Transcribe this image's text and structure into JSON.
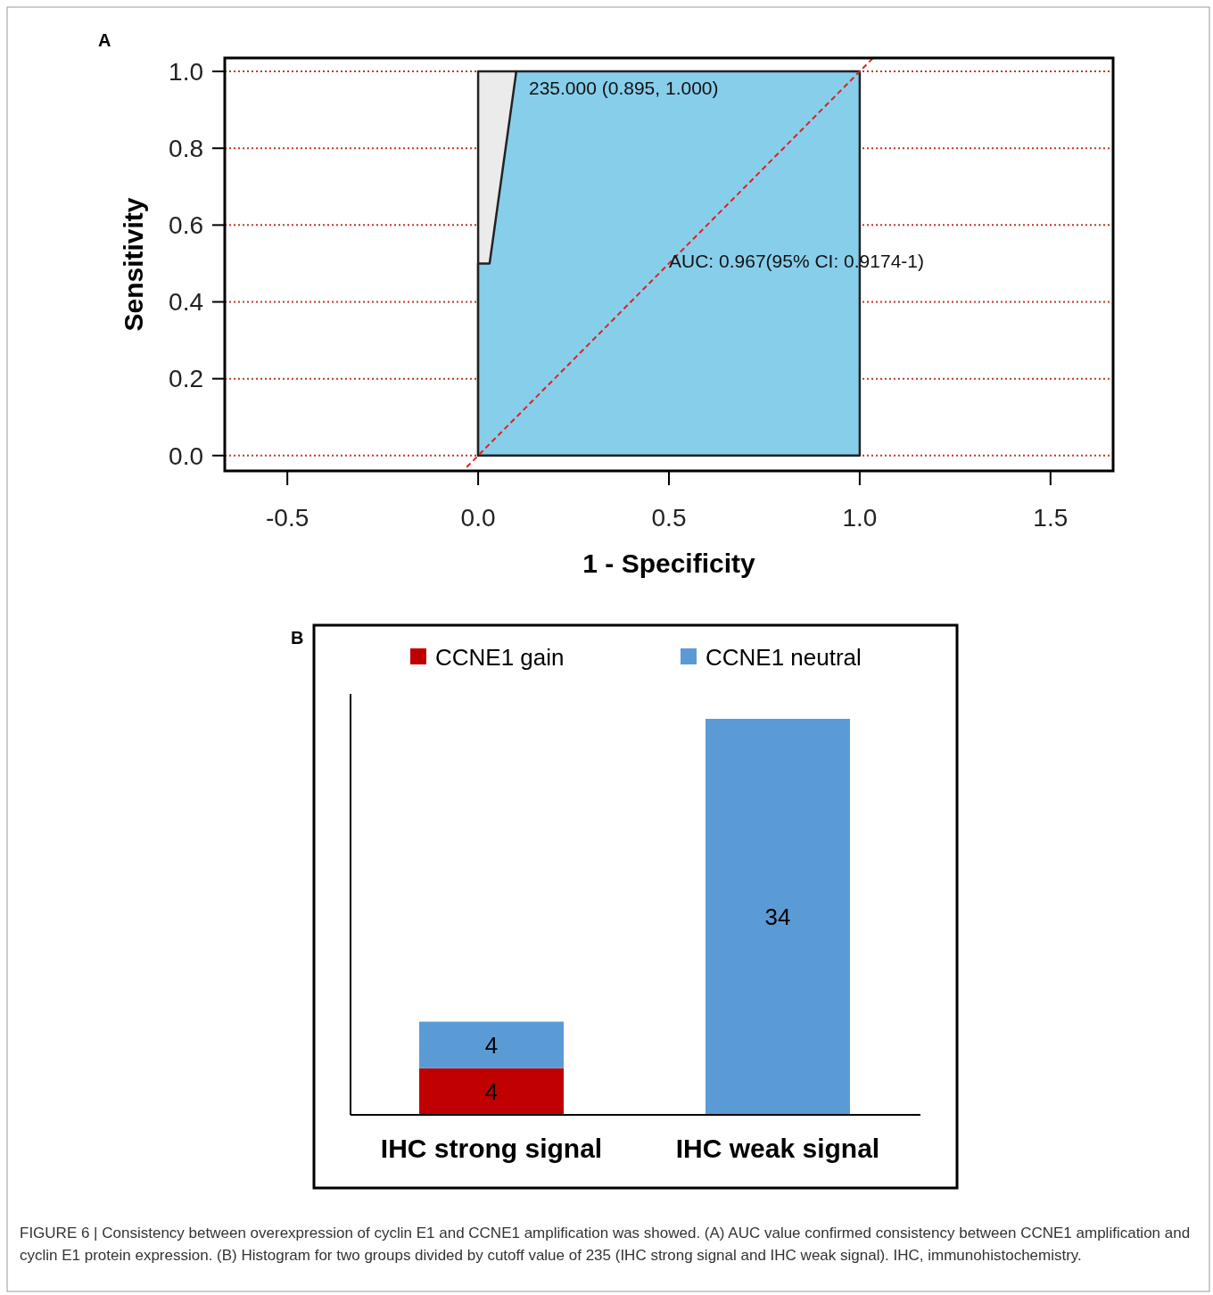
{
  "chart_data": [
    {
      "type": "area",
      "title": "A",
      "xlabel": "1 - Specificity",
      "ylabel": "Sensitivity",
      "xlim": [
        -0.664,
        1.664
      ],
      "ylim": [
        -0.04,
        1.035
      ],
      "xticks": [
        {
          "value": -0.5,
          "label": "-0.5"
        },
        {
          "value": 0,
          "label": "0.0"
        },
        {
          "value": 0.5,
          "label": "0.5"
        },
        {
          "value": 1,
          "label": "1.0"
        },
        {
          "value": 1.5,
          "label": "1.5"
        }
      ],
      "yticks": [
        {
          "value": 0,
          "label": "0.0"
        },
        {
          "value": 0.2,
          "label": "0.2"
        },
        {
          "value": 0.4,
          "label": "0.4"
        },
        {
          "value": 0.6,
          "label": "0.6"
        },
        {
          "value": 0.8,
          "label": "0.8"
        },
        {
          "value": 1,
          "label": "1.0"
        }
      ],
      "grid": "y",
      "series": [
        {
          "type": "area",
          "color": "#ebebeb",
          "x": [
            0,
            0.1
          ],
          "values": [
            1,
            1
          ]
        },
        {
          "type": "area",
          "color": "#87ceeb",
          "x": [
            0,
            0,
            0.03,
            0.1,
            1,
            1
          ],
          "values": [
            0,
            0.5,
            0.5,
            1,
            1,
            0
          ]
        },
        {
          "type": "line",
          "color": "#e0201c",
          "line_style": "dashed",
          "x": [
            -0.03,
            1.035
          ],
          "values": [
            -0.03,
            1.035
          ]
        }
      ],
      "annotations": [
        {
          "text": "235.000 (0.895, 1.000)",
          "x": 0.105,
          "y": 1
        },
        "AUC: 0.967(95% CI: 0.9174-1)"
      ]
    },
    {
      "type": "bar",
      "title": "B",
      "categories": [
        "IHC strong signal",
        "IHC weak signal"
      ],
      "stacked": true,
      "data_labels": true,
      "legend": "top",
      "series": [
        {
          "name": "CCNE1 gain",
          "color": "#c00000",
          "values": [
            4,
            null
          ]
        },
        {
          "name": "CCNE1 neutral",
          "color": "#5b9bd5",
          "values": [
            4,
            34
          ]
        }
      ],
      "annotations": [
        "FIGURE 6 | Consistency between overexpression of cyclin E1 and CCNE1 amplification was showed. (A) AUC value confirmed consistency between CCNE1 amplification and cyclin E1 protein expression. (B) Histogram for two groups divided by cutoff value of 235 (IHC strong signal and IHC weak signal). IHC, immunohistochemistry."
      ]
    }
  ]
}
